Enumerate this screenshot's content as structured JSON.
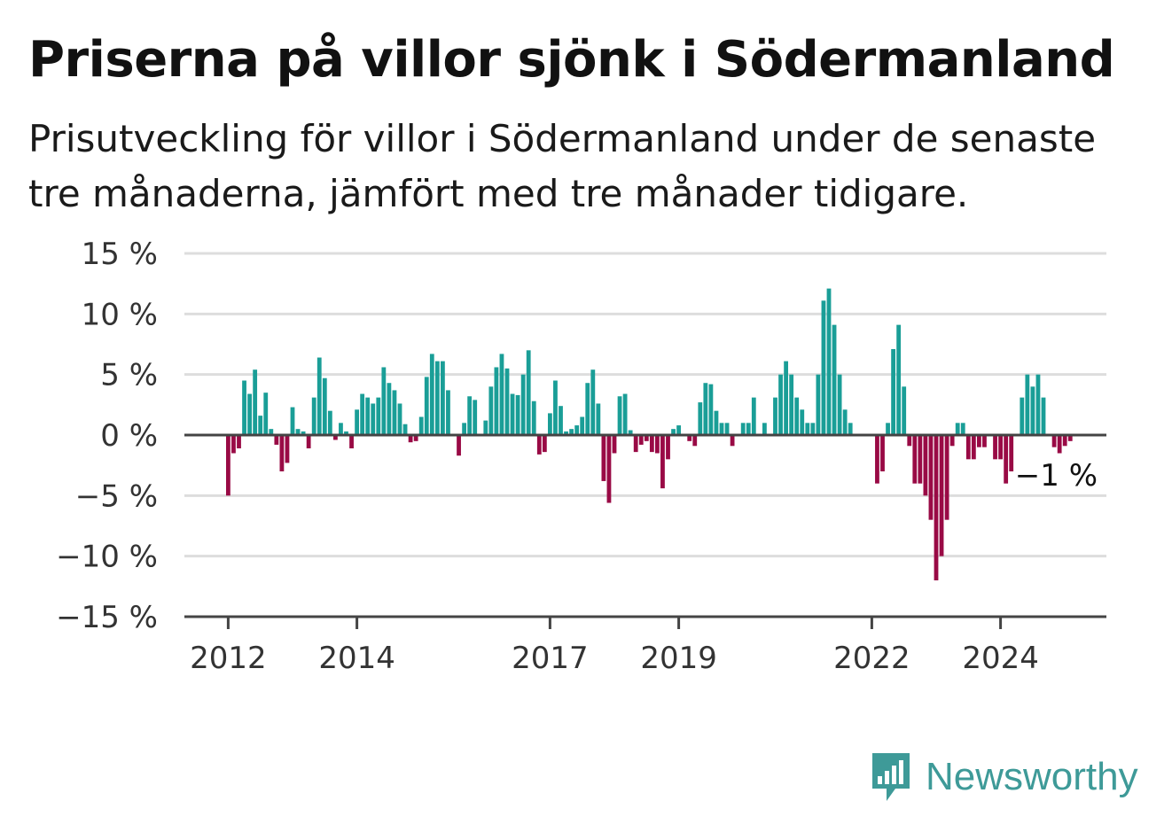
{
  "header": {
    "title": "Priserna på villor sjönk i Södermanland",
    "subtitle": "Prisutveckling för villor i Södermanland under de senaste tre månaderna, jämfört med tre månader tidigare."
  },
  "brand": {
    "name": "Newsworthy",
    "color": "#3e9a98"
  },
  "colors": {
    "positive": "#1a9e97",
    "negative": "#990a45",
    "grid": "#dddddd",
    "axis": "#444444"
  },
  "chart_data": {
    "type": "bar",
    "title": "Priserna på villor sjönk i Södermanland",
    "xlabel": "",
    "ylabel": "",
    "ylim": [
      -15,
      15
    ],
    "y_ticks": [
      15,
      10,
      5,
      0,
      -5,
      -10,
      -15
    ],
    "y_tick_labels": [
      "15 %",
      "10 %",
      "5 %",
      "0 %",
      "−5 %",
      "−10 %",
      "−15 %"
    ],
    "x_start": "2012-01",
    "x_end": "2025-02",
    "x_ticks": [
      {
        "date": "2012-01",
        "label": "2012"
      },
      {
        "date": "2014-01",
        "label": "2014"
      },
      {
        "date": "2017-01",
        "label": "2017"
      },
      {
        "date": "2019-01",
        "label": "2019"
      },
      {
        "date": "2022-01",
        "label": "2022"
      },
      {
        "date": "2024-01",
        "label": "2024"
      }
    ],
    "grid": true,
    "last_value_label": "−1 %",
    "series": [
      {
        "values": [
          -5.0,
          -1.5,
          -1.1,
          4.5,
          3.4,
          5.4,
          1.6,
          3.5,
          0.5,
          -0.8,
          -3.0,
          -2.3,
          2.3,
          0.5,
          0.3,
          -1.1,
          3.1,
          6.4,
          4.7,
          2.0,
          -0.4,
          1.0,
          0.3,
          -1.1,
          2.1,
          3.4,
          3.1,
          2.6,
          3.1,
          5.6,
          4.3,
          3.7,
          2.6,
          0.9,
          -0.6,
          -0.5,
          1.5,
          4.8,
          6.7,
          6.1,
          6.1,
          3.7,
          0.1,
          -1.7,
          1.0,
          3.2,
          2.9,
          0.1,
          1.2,
          4.0,
          5.6,
          6.7,
          5.5,
          3.4,
          3.3,
          5.0,
          7.0,
          2.8,
          -1.6,
          -1.4,
          1.8,
          4.5,
          2.4,
          0.3,
          0.5,
          0.8,
          1.5,
          4.3,
          5.4,
          2.6,
          -3.8,
          -5.6,
          -1.5,
          3.2,
          3.4,
          0.4,
          -1.4,
          -0.8,
          -0.5,
          -1.4,
          -1.5,
          -4.4,
          -2.0,
          0.5,
          0.8,
          0.0,
          -0.5,
          -0.9,
          2.7,
          4.3,
          4.2,
          2.0,
          1.0,
          1.0,
          -0.9,
          0.0,
          1.0,
          1.0,
          3.1,
          0.0,
          1.0,
          0.0,
          3.1,
          5.0,
          6.1,
          5.0,
          3.1,
          2.1,
          1.0,
          1.0,
          5.0,
          11.1,
          12.1,
          9.1,
          5.0,
          2.1,
          1.0,
          0.0,
          0.0,
          0.0,
          0.0,
          -4.0,
          -3.0,
          1.0,
          7.1,
          9.1,
          4.0,
          -0.9,
          -4.0,
          -4.0,
          -5.0,
          -7.0,
          -12.0,
          -10.0,
          -7.0,
          -0.9,
          1.0,
          1.0,
          -2.0,
          -2.0,
          -1.0,
          -1.0,
          0.0,
          -2.0,
          -2.0,
          -4.0,
          -3.0,
          0.0,
          3.1,
          5.0,
          4.0,
          5.0,
          3.1,
          0.0,
          -1.0,
          -1.5,
          -0.9,
          -0.5
        ]
      }
    ]
  }
}
